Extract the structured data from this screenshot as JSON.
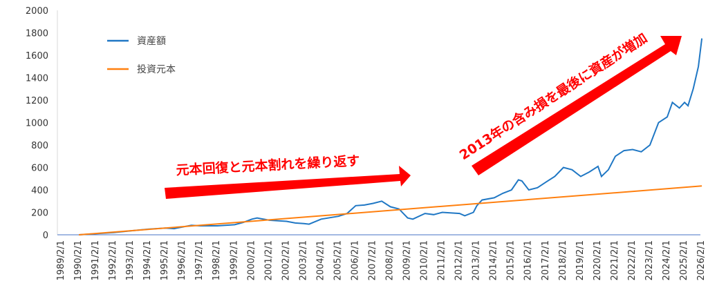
{
  "chart_data": {
    "type": "line",
    "ylim": [
      0,
      2000
    ],
    "yticks": [
      0,
      200,
      400,
      600,
      800,
      1000,
      1200,
      1400,
      1600,
      1800,
      2000
    ],
    "xticks": [
      "1989/2/1",
      "1990/2/1",
      "1991/2/1",
      "1992/2/1",
      "1993/2/1",
      "1994/2/1",
      "1995/2/1",
      "1996/2/1",
      "1997/2/1",
      "1998/2/1",
      "1999/2/1",
      "2000/2/1",
      "2001/2/1",
      "2002/2/1",
      "2003/2/1",
      "2004/2/1",
      "2005/2/1",
      "2006/2/1",
      "2007/2/1",
      "2008/2/1",
      "2009/2/1",
      "2010/2/1",
      "2011/2/1",
      "2012/2/1",
      "2013/2/1",
      "2014/2/1",
      "2015/2/1",
      "2016/2/1",
      "2017/2/1",
      "2018/2/1",
      "2019/2/1",
      "2020/2/1",
      "2021/2/1",
      "2022/2/1",
      "2023/2/1",
      "2024/2/1",
      "2025/2/1",
      "2026/2/1"
    ],
    "legend_position": "top-left",
    "grid": false,
    "series": [
      {
        "name": "資産額",
        "color": "#1f77c4",
        "x": [
          1990,
          1991,
          1992,
          1993,
          1994,
          1995,
          1995.5,
          1996,
          1996.5,
          1997,
          1998,
          1999,
          1999.5,
          2000,
          2000.3,
          2001,
          2002,
          2002.5,
          2003,
          2003.3,
          2004,
          2005,
          2005.5,
          2006,
          2006.5,
          2007,
          2007.5,
          2008,
          2008.5,
          2009,
          2009.3,
          2010,
          2010.5,
          2011,
          2012,
          2012.3,
          2012.8,
          2013,
          2013.3,
          2014,
          2014.5,
          2015,
          2015.4,
          2015.6,
          2016,
          2016.5,
          2017,
          2017.5,
          2018,
          2018.5,
          2019,
          2019.5,
          2020,
          2020.2,
          2020.6,
          2021,
          2021.5,
          2022,
          2022.5,
          2023,
          2023.5,
          2024,
          2024.3,
          2024.7,
          2025,
          2025.2,
          2025.5,
          2025.8,
          2026
        ],
        "values": [
          0,
          10,
          20,
          35,
          50,
          60,
          55,
          70,
          85,
          80,
          80,
          90,
          110,
          140,
          150,
          130,
          120,
          105,
          100,
          95,
          140,
          165,
          190,
          260,
          265,
          280,
          300,
          250,
          230,
          150,
          140,
          190,
          180,
          200,
          190,
          170,
          200,
          260,
          310,
          330,
          370,
          400,
          490,
          480,
          400,
          420,
          470,
          520,
          600,
          580,
          520,
          560,
          610,
          520,
          580,
          700,
          750,
          760,
          740,
          800,
          1000,
          1050,
          1180,
          1130,
          1180,
          1150,
          1300,
          1500,
          1750
        ]
      },
      {
        "name": "投資元本",
        "color": "#ff7f0e",
        "x": [
          1990,
          2026
        ],
        "values": [
          0,
          435
        ]
      }
    ],
    "annotations": [
      {
        "text": "元本回復と元本割れを繰り返す",
        "color": "#ff0000"
      },
      {
        "text": "2013年の含み損を最後に資産が増加",
        "color": "#ff0000"
      }
    ]
  }
}
